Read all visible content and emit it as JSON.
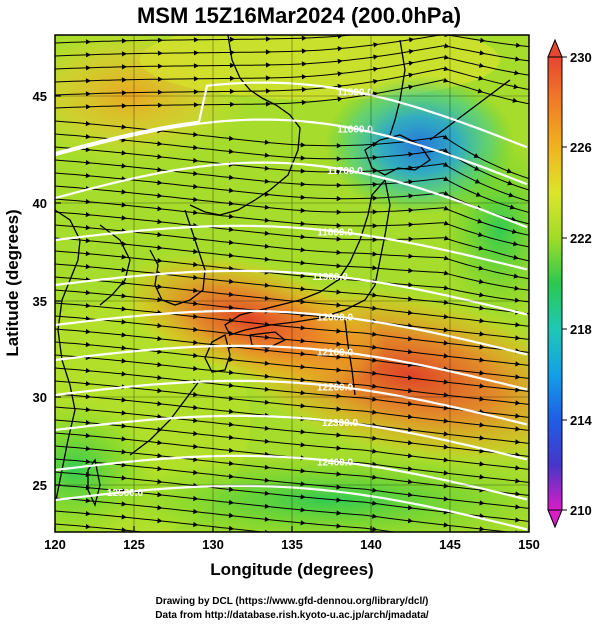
{
  "title": "MSM 15Z16Mar2024 (200.0hPa)",
  "axes": {
    "xlabel": "Longitude (degrees)",
    "ylabel": "Latitude  (degrees)",
    "x_ticks": [
      "120",
      "125",
      "130",
      "135",
      "140",
      "145",
      "150"
    ],
    "y_ticks": [
      "25",
      "30",
      "35",
      "40",
      "45"
    ]
  },
  "colorbar": {
    "ticks": [
      "230",
      "226",
      "222",
      "218",
      "214",
      "210"
    ],
    "min": 210,
    "max": 230,
    "colors": [
      "#d81ec4",
      "#4636c8",
      "#1e5ee6",
      "#14a0e6",
      "#1ec8b4",
      "#1ec85a",
      "#5ad21e",
      "#a0dc28",
      "#dce628",
      "#f0b41e",
      "#f07828",
      "#e64632"
    ]
  },
  "contour_labels": [
    "11500.0",
    "11600.0",
    "11700.0",
    "11800.0",
    "11900.0",
    "12000.0",
    "12100.0",
    "12200.0",
    "12300.0",
    "12400.0",
    "12500.0"
  ],
  "credits": {
    "line1": "Drawing by DCL (https://www.gfd-dennou.org/library/dcl/)",
    "line2": "Data from http://database.rish.kyoto-u.ac.jp/arch/jmadata/"
  },
  "chart_data": {
    "type": "heatmap",
    "title": "MSM 15Z16Mar2024 (200.0hPa)",
    "xlabel": "Longitude (degrees)",
    "ylabel": "Latitude  (degrees)",
    "xlim": [
      120,
      150
    ],
    "ylim": [
      22.4,
      47.6
    ],
    "colorbar_range": [
      210,
      230
    ],
    "contour_levels": [
      11500,
      11600,
      11700,
      11800,
      11900,
      12000,
      12100,
      12200,
      12300,
      12400,
      12500
    ],
    "vectors": "streamlines (wind direction)",
    "grid": true
  }
}
